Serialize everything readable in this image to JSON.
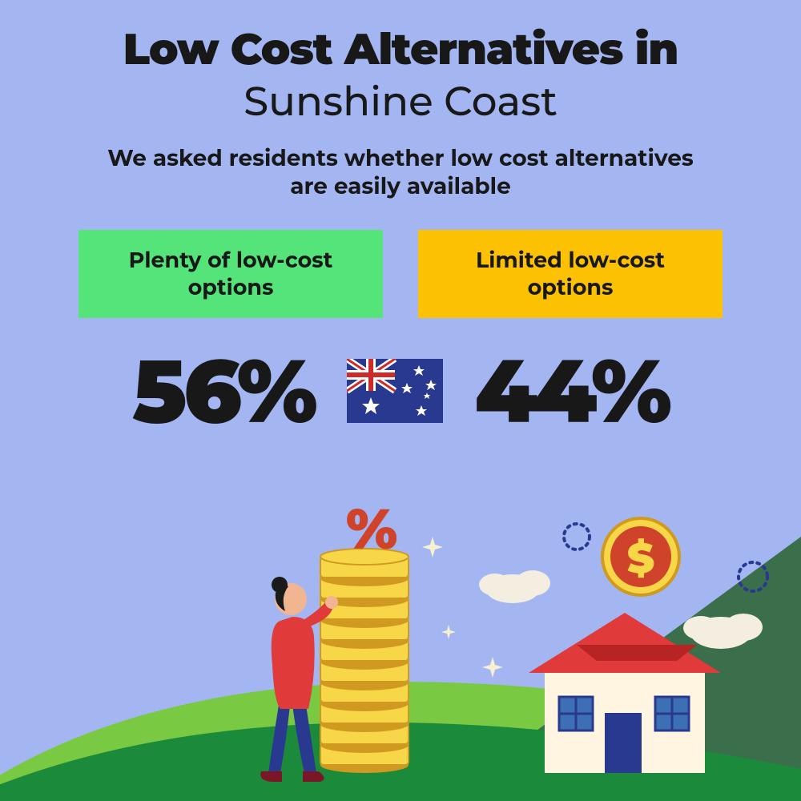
{
  "background_color": "#a4b6f2",
  "text_color": "#181818",
  "title": {
    "line1": "Low Cost Alternatives in",
    "line2": "Sunshine Coast",
    "line1_weight": 900,
    "line2_weight": 500,
    "fontsize1": 54,
    "fontsize2": 50
  },
  "subtitle": "We asked residents whether low cost alternatives are easily available",
  "subtitle_fontsize": 28,
  "option_left": {
    "label": "Plenty of low-cost options",
    "bg_color": "#54e47a",
    "value": "56%"
  },
  "option_right": {
    "label": "Limited low-cost options",
    "bg_color": "#fcc102",
    "value": "44%"
  },
  "stat_fontsize": 110,
  "flag": {
    "name": "australia-flag-icon",
    "bg": "#2a3990",
    "red": "#cf2a2a",
    "white": "#ffffff"
  },
  "illustration": {
    "ground_dark": "#1b8a3a",
    "ground_light": "#7ac943",
    "sky_triangle": "#3b6e4a",
    "coin_fill": "#f7d648",
    "coin_stroke": "#cf9a1f",
    "coin_inner": "#d0432b",
    "percent_color": "#d0432b",
    "house_wall": "#fff5e0",
    "house_roof": "#e13a3a",
    "house_roof_dark": "#b82323",
    "house_door": "#2a3990",
    "house_window": "#3d6fb5",
    "house_window_frame": "#2a3990",
    "cloud": "#f4eee0",
    "sparkle": "#f7f0d2",
    "sun_ring": "#2a3990",
    "person_top": "#e13a3a",
    "person_pants": "#2a3990",
    "person_skin": "#f2b591",
    "person_hair": "#1a1a1a",
    "person_shoe": "#7a1626"
  }
}
